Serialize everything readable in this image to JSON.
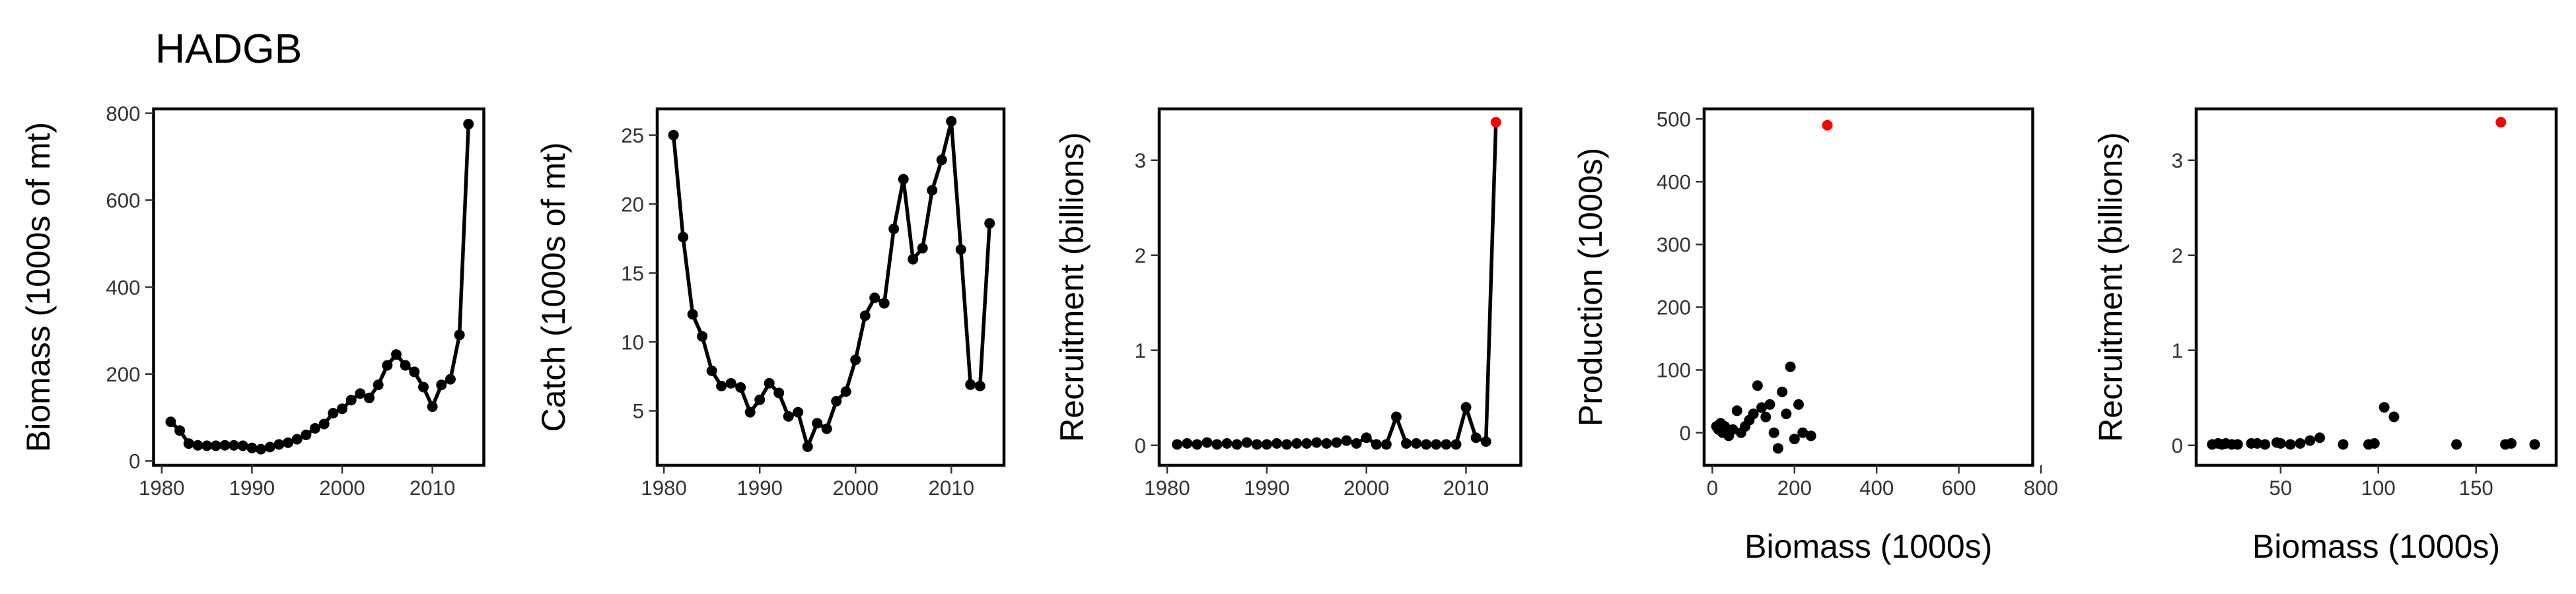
{
  "title": "HADGB",
  "chart_data": [
    {
      "type": "line",
      "ylabel": "Biomass (1000s of mt)",
      "color": "#000000",
      "x": [
        1981,
        1982,
        1983,
        1984,
        1985,
        1986,
        1987,
        1988,
        1989,
        1990,
        1991,
        1992,
        1993,
        1994,
        1995,
        1996,
        1997,
        1998,
        1999,
        2000,
        2001,
        2002,
        2003,
        2004,
        2005,
        2006,
        2007,
        2008,
        2009,
        2010,
        2011,
        2012,
        2013,
        2014
      ],
      "values": [
        90,
        70,
        40,
        36,
        35,
        35,
        36,
        36,
        35,
        30,
        27,
        32,
        38,
        42,
        50,
        60,
        75,
        85,
        110,
        120,
        140,
        155,
        145,
        175,
        220,
        245,
        220,
        205,
        170,
        125,
        175,
        188,
        290,
        775
      ],
      "xlim": [
        1979.1,
        2015.7
      ],
      "ylim": [
        -10,
        810
      ],
      "xticks": [
        1980,
        1990,
        2000,
        2010
      ],
      "yticks": [
        0,
        200,
        400,
        600,
        800
      ]
    },
    {
      "type": "line",
      "ylabel": "Catch (1000s of mt)",
      "color": "#000000",
      "x": [
        1981,
        1982,
        1983,
        1984,
        1985,
        1986,
        1987,
        1988,
        1989,
        1990,
        1991,
        1992,
        1993,
        1994,
        1995,
        1996,
        1997,
        1998,
        1999,
        2000,
        2001,
        2002,
        2003,
        2004,
        2005,
        2006,
        2007,
        2008,
        2009,
        2010,
        2011,
        2012,
        2013,
        2014
      ],
      "values": [
        25,
        17.6,
        12,
        10.4,
        7.9,
        6.8,
        7,
        6.7,
        4.9,
        5.8,
        7,
        6.3,
        4.6,
        4.9,
        2.4,
        4.1,
        3.7,
        5.7,
        6.4,
        8.7,
        11.9,
        13.2,
        12.8,
        18.2,
        21.8,
        16,
        16.8,
        21,
        23.2,
        26,
        16.7,
        6.9,
        6.8,
        18.6
      ],
      "xlim": [
        1979.3,
        2015.5
      ],
      "ylim": [
        1.05,
        26.9
      ],
      "xticks": [
        1980,
        1990,
        2000,
        2010
      ],
      "yticks": [
        5,
        10,
        15,
        20,
        25
      ]
    },
    {
      "type": "line",
      "ylabel": "Recruitment (billions)",
      "color": "#000000",
      "x": [
        1981,
        1982,
        1983,
        1984,
        1985,
        1986,
        1987,
        1988,
        1989,
        1990,
        1991,
        1992,
        1993,
        1994,
        1995,
        1996,
        1997,
        1998,
        1999,
        2000,
        2001,
        2002,
        2003,
        2004,
        2005,
        2006,
        2007,
        2008,
        2009,
        2010,
        2011,
        2012,
        2013
      ],
      "values": [
        0.01,
        0.02,
        0.01,
        0.03,
        0.01,
        0.02,
        0.01,
        0.03,
        0.01,
        0.01,
        0.02,
        0.01,
        0.02,
        0.02,
        0.03,
        0.02,
        0.03,
        0.05,
        0.02,
        0.08,
        0.01,
        0.01,
        0.3,
        0.02,
        0.02,
        0.01,
        0.01,
        0.01,
        0.01,
        0.4,
        0.08,
        0.04,
        3.4
      ],
      "point_colors": [
        "#000000",
        "#000000",
        "#000000",
        "#000000",
        "#000000",
        "#000000",
        "#000000",
        "#000000",
        "#000000",
        "#000000",
        "#000000",
        "#000000",
        "#000000",
        "#000000",
        "#000000",
        "#000000",
        "#000000",
        "#000000",
        "#000000",
        "#000000",
        "#000000",
        "#000000",
        "#000000",
        "#000000",
        "#000000",
        "#000000",
        "#000000",
        "#000000",
        "#000000",
        "#000000",
        "#000000",
        "#000000",
        "#ff0000"
      ],
      "xlim": [
        1979.2,
        2015.5
      ],
      "ylim": [
        -0.21,
        3.54
      ],
      "xticks": [
        1980,
        1990,
        2000,
        2010
      ],
      "yticks": [
        0,
        1,
        2,
        3
      ]
    },
    {
      "type": "scatter",
      "xlabel": "Biomass (1000s)",
      "ylabel": "Production (1000s)",
      "x": [
        10,
        15,
        20,
        25,
        30,
        40,
        50,
        60,
        70,
        80,
        90,
        100,
        110,
        120,
        130,
        140,
        150,
        160,
        170,
        180,
        190,
        200,
        210,
        220,
        240,
        280
      ],
      "values": [
        10,
        5,
        15,
        0,
        10,
        -5,
        5,
        35,
        0,
        10,
        20,
        30,
        75,
        40,
        25,
        45,
        0,
        -25,
        65,
        30,
        105,
        -10,
        45,
        0,
        -5,
        490
      ],
      "point_colors": [
        "#000000",
        "#000000",
        "#000000",
        "#000000",
        "#000000",
        "#000000",
        "#000000",
        "#000000",
        "#000000",
        "#000000",
        "#000000",
        "#000000",
        "#000000",
        "#000000",
        "#000000",
        "#000000",
        "#000000",
        "#000000",
        "#000000",
        "#000000",
        "#000000",
        "#000000",
        "#000000",
        "#000000",
        "#000000",
        "#ff0000"
      ],
      "xlim": [
        -20,
        780
      ],
      "ylim": [
        -52,
        516
      ],
      "xticks": [
        0,
        200,
        400,
        600,
        800
      ],
      "yticks": [
        0,
        100,
        200,
        300,
        400,
        500
      ]
    },
    {
      "type": "scatter",
      "xlabel": "Biomass (1000s)",
      "ylabel": "Recruitment (billions)",
      "x": [
        15,
        18,
        20,
        22,
        25,
        28,
        35,
        38,
        42,
        48,
        50,
        55,
        60,
        65,
        70,
        82,
        95,
        98,
        103,
        108,
        140,
        162.7,
        165,
        168,
        180
      ],
      "values": [
        0.01,
        0.02,
        0.01,
        0.02,
        0.01,
        0.01,
        0.02,
        0.02,
        0.01,
        0.03,
        0.02,
        0.01,
        0.02,
        0.05,
        0.08,
        0.01,
        0.01,
        0.02,
        0.4,
        0.3,
        0.01,
        3.4,
        0.01,
        0.02,
        0.01
      ],
      "point_colors": [
        "#000000",
        "#000000",
        "#000000",
        "#000000",
        "#000000",
        "#000000",
        "#000000",
        "#000000",
        "#000000",
        "#000000",
        "#000000",
        "#000000",
        "#000000",
        "#000000",
        "#000000",
        "#000000",
        "#000000",
        "#000000",
        "#000000",
        "#000000",
        "#000000",
        "#ff0000",
        "#000000",
        "#000000",
        "#000000"
      ],
      "xlim": [
        6.8,
        191
      ],
      "ylim": [
        -0.21,
        3.54
      ],
      "xticks": [
        50,
        100,
        150
      ],
      "yticks": [
        0,
        1,
        2,
        3
      ]
    }
  ]
}
